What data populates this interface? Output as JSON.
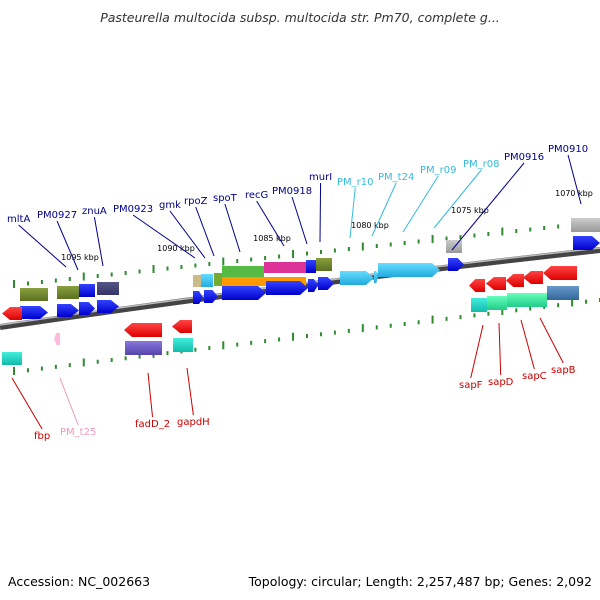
{
  "title": "Pasteurella multocida subsp. multocida str. Pm70, complete g...",
  "footer": {
    "accession": "Accession: NC_002663",
    "topology": "Topology: circular; Length: 2,257,487 bp; Genes: 2,092"
  },
  "kbp_labels": [
    "1095 kbp",
    "1090 kbp",
    "1085 kbp",
    "1080 kbp",
    "1075 kbp",
    "1070 kbp"
  ],
  "colors": {
    "forward_label": "#00008b",
    "trna_label": "#33bbdd",
    "reverse_label": "#cc0000",
    "pseudo_label": "#ee99bb",
    "backbone": "#666666",
    "tick": "#2e8b2e"
  },
  "forward_genes": [
    {
      "label": "mltA",
      "color": "forward_label"
    },
    {
      "label": "PM0927",
      "color": "forward_label"
    },
    {
      "label": "znuA",
      "color": "forward_label"
    },
    {
      "label": "PM0923",
      "color": "forward_label"
    },
    {
      "label": "gmk",
      "color": "forward_label"
    },
    {
      "label": "rpoZ",
      "color": "forward_label"
    },
    {
      "label": "spoT",
      "color": "forward_label"
    },
    {
      "label": "recG",
      "color": "forward_label"
    },
    {
      "label": "PM0918",
      "color": "forward_label"
    },
    {
      "label": "murI",
      "color": "forward_label"
    },
    {
      "label": "PM_r10",
      "color": "trna_label"
    },
    {
      "label": "PM_t24",
      "color": "trna_label"
    },
    {
      "label": "PM_r09",
      "color": "trna_label"
    },
    {
      "label": "PM_r08",
      "color": "trna_label"
    },
    {
      "label": "PM0916",
      "color": "forward_label"
    },
    {
      "label": "PM0910",
      "color": "forward_label"
    }
  ],
  "reverse_genes": [
    {
      "label": "fbp",
      "color": "reverse_label"
    },
    {
      "label": "PM_t25",
      "color": "pseudo_label"
    },
    {
      "label": "fadD_2",
      "color": "reverse_label"
    },
    {
      "label": "gapdH",
      "color": "reverse_label"
    },
    {
      "label": "sapF",
      "color": "reverse_label"
    },
    {
      "label": "sapD",
      "color": "reverse_label"
    },
    {
      "label": "sapC",
      "color": "reverse_label"
    },
    {
      "label": "sapB",
      "color": "reverse_label"
    }
  ]
}
